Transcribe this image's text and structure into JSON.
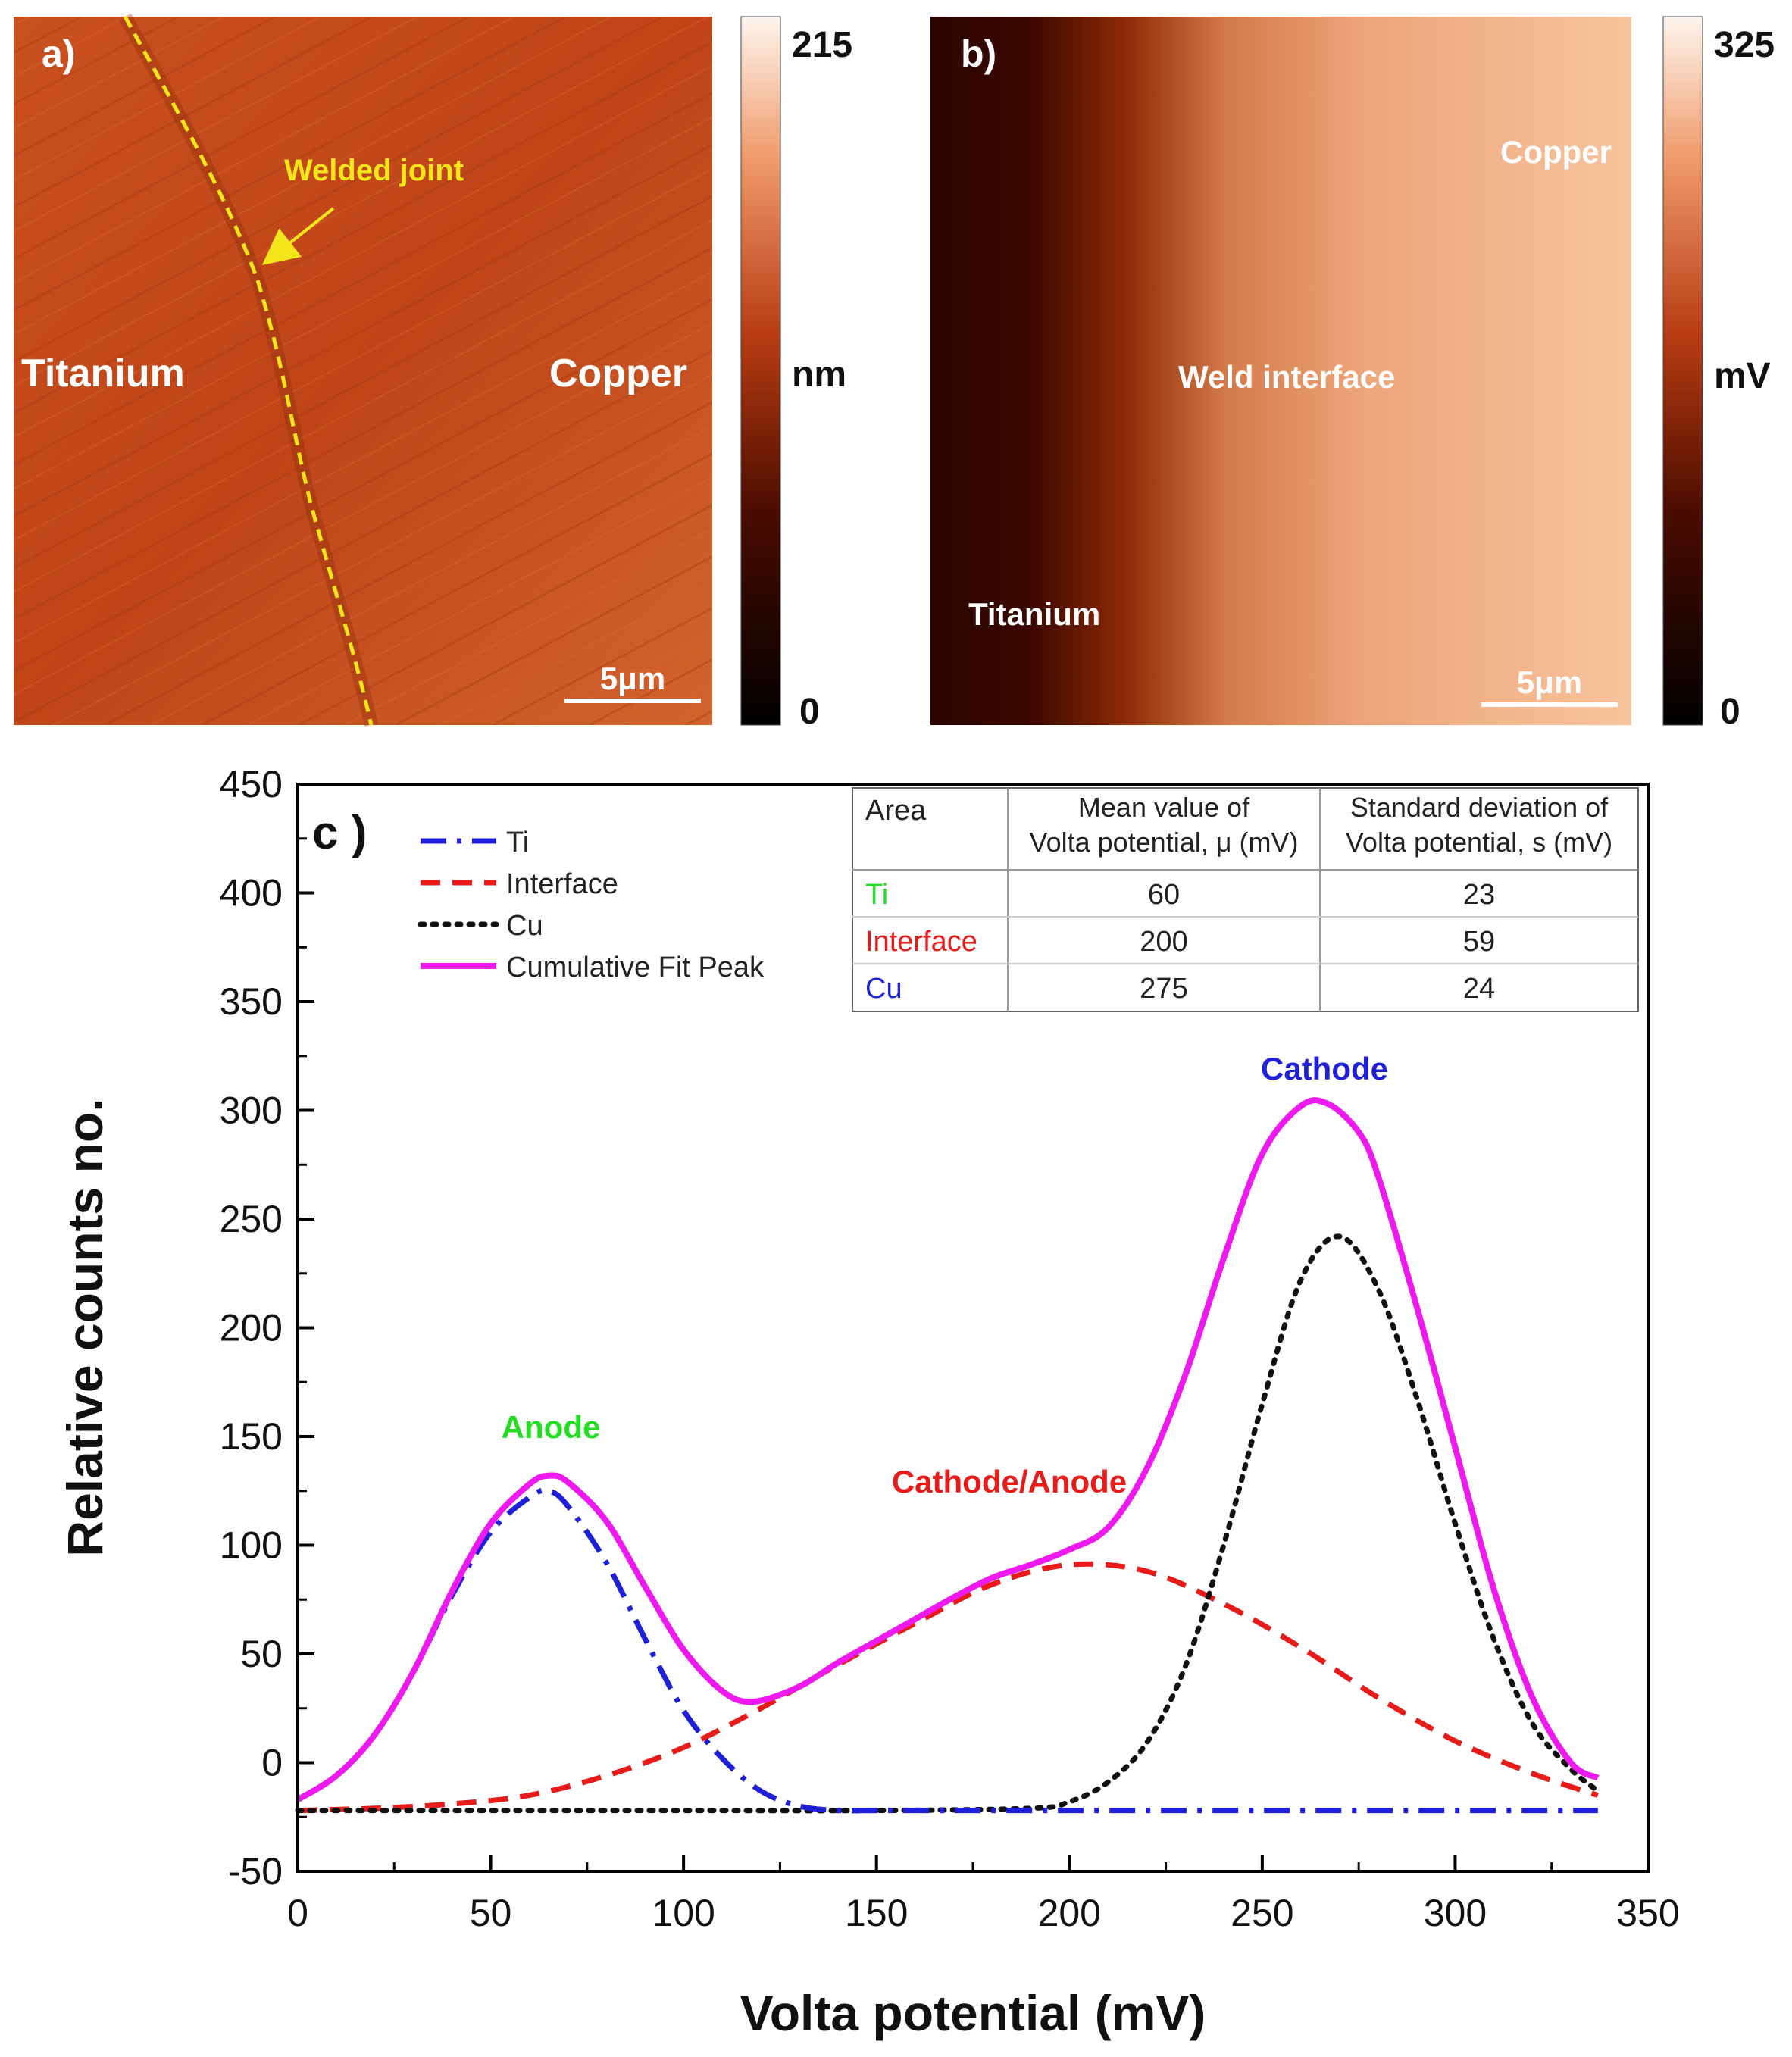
{
  "panel_a": {
    "label": "a)",
    "left_label": "Titanium",
    "right_label": "Copper",
    "annotation": "Welded joint",
    "scalebar": "5μm",
    "colorbar": {
      "max": "215",
      "unit": "nm",
      "min": "0"
    }
  },
  "panel_b": {
    "label": "b)",
    "top_right_label": "Copper",
    "center_label": "Weld interface",
    "bottom_left_label": "Titanium",
    "scalebar": "5μm",
    "colorbar": {
      "max": "325",
      "unit": "mV",
      "min": "0"
    }
  },
  "chart_data": {
    "type": "line",
    "panel_label": "c )",
    "xlabel": "Volta potential (mV)",
    "ylabel": "Relative counts no.",
    "xlim": [
      0,
      350
    ],
    "ylim": [
      -50,
      450
    ],
    "xticks": [
      "0",
      "50",
      "100",
      "150",
      "200",
      "250",
      "300",
      "350"
    ],
    "yticks": [
      "-50",
      "0",
      "50",
      "100",
      "150",
      "200",
      "250",
      "300",
      "350",
      "400",
      "450"
    ],
    "grid": false,
    "legend_position": "top-left",
    "series": [
      {
        "name": "Ti",
        "color": "#1f1fd8",
        "style": "dashdot",
        "x": [
          0,
          10,
          20,
          30,
          40,
          50,
          60,
          65,
          70,
          80,
          90,
          100,
          110,
          120,
          130,
          140,
          150,
          200,
          250,
          300,
          337
        ],
        "y": [
          -17,
          -6,
          13,
          42,
          77,
          106,
          122,
          125,
          118,
          92,
          57,
          24,
          2,
          -13,
          -20,
          -22,
          -22,
          -22,
          -22,
          -22,
          -22
        ]
      },
      {
        "name": "Interface",
        "color": "#e81b1b",
        "style": "dashed",
        "x": [
          0,
          20,
          40,
          60,
          80,
          100,
          120,
          140,
          160,
          180,
          200,
          220,
          240,
          260,
          280,
          300,
          320,
          337
        ],
        "y": [
          -22,
          -21,
          -19,
          -15,
          -6,
          7,
          25,
          45,
          64,
          82,
          91,
          88,
          73,
          53,
          30,
          10,
          -5,
          -15
        ]
      },
      {
        "name": "Cu",
        "color": "#111111",
        "style": "dotted",
        "x": [
          0,
          50,
          100,
          150,
          190,
          200,
          210,
          220,
          230,
          240,
          250,
          260,
          270,
          280,
          290,
          300,
          310,
          320,
          330,
          337
        ],
        "y": [
          -22,
          -22,
          -22,
          -22,
          -21,
          -18,
          -9,
          9,
          44,
          100,
          165,
          222,
          242,
          218,
          168,
          110,
          57,
          18,
          -3,
          -13
        ]
      },
      {
        "name": "Cumulative Fit Peak",
        "color": "#ee19ee",
        "style": "solid",
        "x": [
          0,
          10,
          20,
          30,
          40,
          50,
          60,
          65,
          70,
          80,
          90,
          100,
          110,
          118,
          130,
          140,
          150,
          160,
          170,
          180,
          190,
          200,
          210,
          220,
          230,
          240,
          250,
          260,
          267,
          275,
          280,
          290,
          300,
          310,
          320,
          330,
          337
        ],
        "y": [
          -17,
          -6,
          13,
          42,
          79,
          110,
          128,
          132,
          129,
          111,
          81,
          52,
          33,
          28,
          35,
          46,
          56,
          66,
          76,
          85,
          91,
          98,
          108,
          135,
          178,
          232,
          280,
          302,
          303,
          290,
          270,
          210,
          145,
          80,
          30,
          0,
          -7
        ]
      }
    ],
    "annotations": [
      {
        "text": "Anode",
        "color": "#22dd22"
      },
      {
        "text": "Cathode/Anode",
        "color": "#e81b1b"
      },
      {
        "text": "Cathode",
        "color": "#1f1fd8"
      }
    ],
    "table": {
      "headers": [
        "Area",
        "Mean value of",
        "Volta potential, μ (mV)",
        "Standard deviation of",
        "Volta potential, s (mV)"
      ],
      "rows": [
        {
          "area": "Ti",
          "color": "#22dd22",
          "mean": "60",
          "sd": "23"
        },
        {
          "area": "Interface",
          "color": "#e81b1b",
          "mean": "200",
          "sd": "59"
        },
        {
          "area": "Cu",
          "color": "#1f1fd8",
          "mean": "275",
          "sd": "24"
        }
      ]
    }
  }
}
